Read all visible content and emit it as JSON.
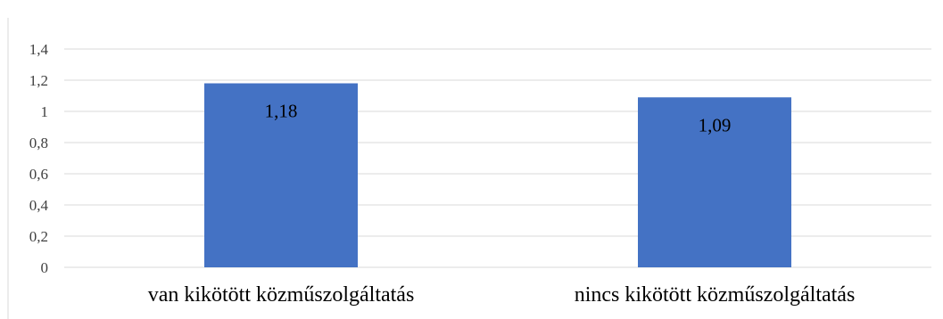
{
  "chart_data": {
    "type": "bar",
    "categories": [
      "van kikötött közműszolgáltatás",
      "nincs kikötött közműszolgáltatás"
    ],
    "values": [
      1.18,
      1.09
    ],
    "data_labels": [
      "1,18",
      "1,09"
    ],
    "y_ticks": [
      0,
      0.2,
      0.4,
      0.6,
      0.8,
      1,
      1.2,
      1.4
    ],
    "y_tick_labels": [
      "0",
      "0,2",
      "0,4",
      "0,6",
      "0,8",
      "1",
      "1,2",
      "1,4"
    ],
    "ylim": [
      0,
      1.4
    ],
    "title": "",
    "xlabel": "",
    "ylabel": "",
    "grid": true,
    "legend": "none",
    "colors": {
      "bar": "#4472C4",
      "grid": "#D9D9D9",
      "axis": "#D9D9D9",
      "frame": "#BFBFBF"
    }
  }
}
